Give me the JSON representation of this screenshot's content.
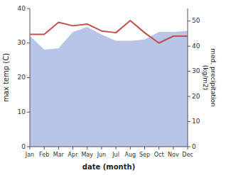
{
  "chart_data": {
    "type": "line",
    "xlabel": "date (month)",
    "ylabel": "max temp (C)",
    "y2label": "med. precipitation\n(kg/m2)",
    "categories": [
      "Jan",
      "Feb",
      "Mar",
      "Apr",
      "May",
      "Jun",
      "Jul",
      "Aug",
      "Sep",
      "Oct",
      "Nov",
      "Dec"
    ],
    "series": [
      {
        "type": "area",
        "axis": "y2",
        "color": "#b8c4e8",
        "values": [
          44.0,
          38.5,
          39.0,
          45.5,
          47.5,
          44.5,
          42.0,
          42.0,
          42.5,
          45.5,
          45.5,
          46.0
        ]
      },
      {
        "type": "line",
        "axis": "y",
        "color": "#c0504d",
        "values": [
          32.5,
          32.5,
          36.0,
          35.0,
          35.5,
          33.5,
          33.0,
          36.5,
          33.0,
          30.0,
          32.0,
          32.0
        ]
      }
    ],
    "ylim": [
      0,
      40
    ],
    "yticks": [
      0,
      10,
      20,
      30,
      40
    ],
    "y2lim": [
      0,
      55
    ],
    "y2ticks": [
      0,
      10,
      20,
      30,
      40,
      50
    ],
    "grid": false
  }
}
